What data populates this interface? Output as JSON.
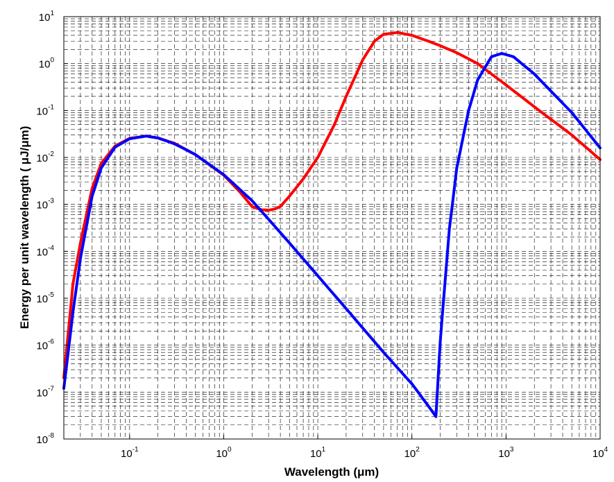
{
  "chart_data": {
    "type": "line",
    "xscale": "log",
    "yscale": "log",
    "xlim": [
      0.02,
      10000
    ],
    "ylim": [
      1e-08,
      10
    ],
    "grid": true,
    "grid_style": "dashed",
    "xlabel": "Wavelength (μm)",
    "ylabel": "Energy per unit wavelength ( μJ/μm)",
    "x_ticks": [
      {
        "value": 0.1,
        "base": "10",
        "exp": "-1"
      },
      {
        "value": 1,
        "base": "10",
        "exp": "0"
      },
      {
        "value": 10,
        "base": "10",
        "exp": "1"
      },
      {
        "value": 100,
        "base": "10",
        "exp": "2"
      },
      {
        "value": 1000,
        "base": "10",
        "exp": "3"
      },
      {
        "value": 10000,
        "base": "10",
        "exp": "4"
      }
    ],
    "y_ticks": [
      {
        "value": 1e-08,
        "base": "10",
        "exp": "-8"
      },
      {
        "value": 1e-07,
        "base": "10",
        "exp": "-7"
      },
      {
        "value": 1e-06,
        "base": "10",
        "exp": "-6"
      },
      {
        "value": 1e-05,
        "base": "10",
        "exp": "-5"
      },
      {
        "value": 0.0001,
        "base": "10",
        "exp": "-4"
      },
      {
        "value": 0.001,
        "base": "10",
        "exp": "-3"
      },
      {
        "value": 0.01,
        "base": "10",
        "exp": "-2"
      },
      {
        "value": 0.1,
        "base": "10",
        "exp": "-1"
      },
      {
        "value": 1,
        "base": "10",
        "exp": "0"
      },
      {
        "value": 10,
        "base": "10",
        "exp": "1"
      }
    ],
    "series": [
      {
        "color": "#ff0000",
        "x": [
          0.02,
          0.025,
          0.03,
          0.04,
          0.05,
          0.07,
          0.1,
          0.15,
          0.2,
          0.3,
          0.5,
          1,
          1.5,
          2,
          2.5,
          3,
          3.5,
          4,
          5,
          7,
          10,
          15,
          20,
          30,
          40,
          50,
          70,
          100,
          150,
          200,
          300,
          500,
          700,
          1000,
          2000,
          5000,
          10000
        ],
        "y": [
          2e-07,
          2e-05,
          0.00015,
          0.0022,
          0.0075,
          0.0175,
          0.0255,
          0.0285,
          0.026,
          0.02,
          0.0115,
          0.0042,
          0.0018,
          0.0009,
          0.00077,
          0.00075,
          0.0008,
          0.0009,
          0.0015,
          0.0035,
          0.01,
          0.05,
          0.2,
          1.2,
          3.0,
          4.2,
          4.6,
          4.0,
          3.0,
          2.4,
          1.7,
          1.0,
          0.6,
          0.35,
          0.12,
          0.03,
          0.009
        ]
      },
      {
        "color": "#0000ff",
        "x": [
          0.02,
          0.025,
          0.03,
          0.04,
          0.05,
          0.07,
          0.1,
          0.15,
          0.2,
          0.3,
          0.5,
          1,
          2,
          3,
          5,
          10,
          20,
          50,
          100,
          150,
          180,
          190,
          200,
          250,
          300,
          400,
          500,
          700,
          900,
          1200,
          2000,
          5000,
          10000
        ],
        "y": [
          1.2e-07,
          5e-06,
          7e-05,
          0.0015,
          0.006,
          0.0165,
          0.025,
          0.0285,
          0.026,
          0.0195,
          0.0115,
          0.0043,
          0.0012,
          0.00048,
          0.00015,
          3e-05,
          6e-06,
          7e-07,
          1.5e-07,
          5e-08,
          3e-08,
          2e-07,
          1.2e-06,
          0.0003,
          0.006,
          0.1,
          0.45,
          1.4,
          1.65,
          1.4,
          0.6,
          0.09,
          0.016
        ]
      }
    ]
  }
}
